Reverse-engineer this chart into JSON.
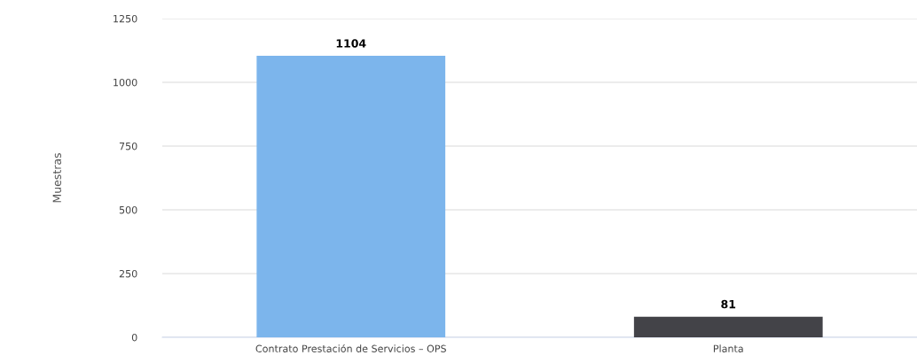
{
  "chart_data": {
    "type": "bar",
    "ylabel": "Muestras",
    "categories": [
      "Contrato Prestación de Servicios – OPS",
      "Planta"
    ],
    "values": [
      1104,
      81
    ],
    "colors": [
      "#7cb5ec",
      "#434348"
    ],
    "ylim": [
      0,
      1250
    ],
    "yticks": [
      0,
      250,
      500,
      750,
      1000,
      1250
    ],
    "grid": "y",
    "data_labels": true
  }
}
